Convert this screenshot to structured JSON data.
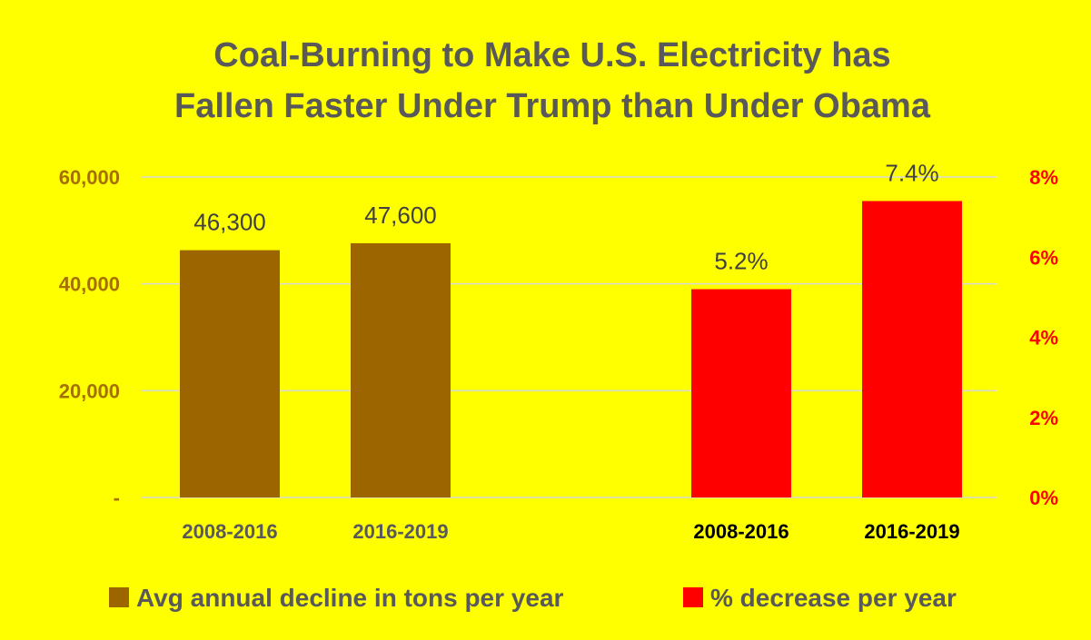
{
  "colors": {
    "background": "#FFFF00",
    "tons_bar": "#9C6500",
    "pct_bar": "#FF0000",
    "left_axis_text": "#A57000",
    "right_axis_text": "#FF0000",
    "title_text": "#595959"
  },
  "chart_data": {
    "type": "bar",
    "title_lines": [
      "Coal-Burning to Make U.S. Electricity has",
      "Fallen Faster Under Trump than Under Obama"
    ],
    "grid": true,
    "legend_position": "bottom",
    "left_axis": {
      "range": [
        0,
        60000
      ],
      "ticks": [
        0,
        20000,
        40000,
        60000
      ],
      "tick_labels": [
        "-",
        "20,000",
        "40,000",
        "60,000"
      ]
    },
    "right_axis": {
      "range": [
        0,
        8
      ],
      "ticks": [
        0,
        2,
        4,
        6,
        8
      ],
      "tick_labels": [
        "0%",
        "2%",
        "4%",
        "6%",
        "8%"
      ]
    },
    "series": [
      {
        "name": "Avg annual decline in tons per year",
        "axis": "left",
        "categories": [
          "2008-2016",
          "2016-2019"
        ],
        "values": [
          46300,
          47600
        ],
        "data_labels": [
          "46,300",
          "47,600"
        ]
      },
      {
        "name": "% decrease per year",
        "axis": "right",
        "categories": [
          "2008-2016",
          "2016-2019"
        ],
        "values": [
          5.2,
          7.4
        ],
        "data_labels": [
          "5.2%",
          "7.4%"
        ]
      }
    ]
  }
}
